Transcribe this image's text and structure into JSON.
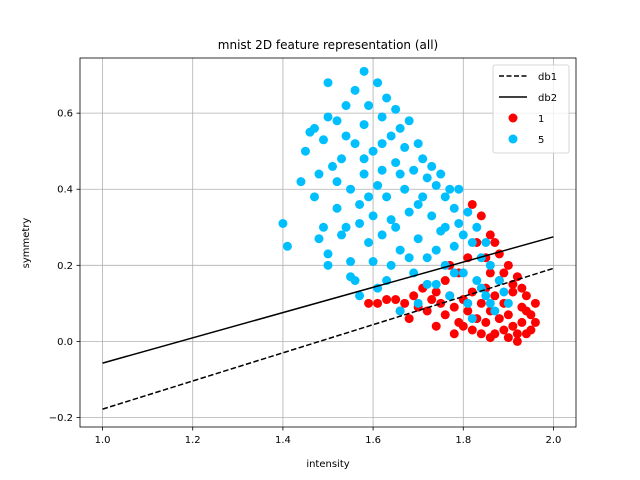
{
  "chart_data": {
    "type": "scatter",
    "title": "mnist 2D feature representation (all)",
    "xlabel": "intensity",
    "ylabel": "symmetry",
    "xlim": [
      0.95,
      2.05
    ],
    "ylim": [
      -0.225,
      0.745
    ],
    "xticks": [
      1.0,
      1.2,
      1.4,
      1.6,
      1.8,
      2.0
    ],
    "xtick_labels": [
      "1.0",
      "1.2",
      "1.4",
      "1.6",
      "1.8",
      "2.0"
    ],
    "yticks": [
      -0.2,
      0.0,
      0.2,
      0.4,
      0.6
    ],
    "ytick_labels": [
      "−0.2",
      "0.0",
      "0.2",
      "0.4",
      "0.6"
    ],
    "grid": true,
    "legend_position": "top-right",
    "lines": [
      {
        "name": "db1",
        "style": "dashed",
        "color": "#000000",
        "x": [
          1.0,
          2.0
        ],
        "y": [
          -0.178,
          0.192
        ]
      },
      {
        "name": "db2",
        "style": "solid",
        "color": "#000000",
        "x": [
          1.0,
          2.0
        ],
        "y": [
          -0.057,
          0.275
        ]
      }
    ],
    "series": [
      {
        "name": "1",
        "color": "#ff0000",
        "points": [
          [
            1.59,
            0.1
          ],
          [
            1.61,
            0.1
          ],
          [
            1.63,
            0.11
          ],
          [
            1.65,
            0.11
          ],
          [
            1.67,
            0.1
          ],
          [
            1.69,
            0.12
          ],
          [
            1.7,
            0.09
          ],
          [
            1.72,
            0.08
          ],
          [
            1.73,
            0.11
          ],
          [
            1.75,
            0.1
          ],
          [
            1.74,
            0.13
          ],
          [
            1.76,
            0.07
          ],
          [
            1.77,
            0.12
          ],
          [
            1.78,
            0.09
          ],
          [
            1.79,
            0.05
          ],
          [
            1.8,
            0.11
          ],
          [
            1.8,
            0.04
          ],
          [
            1.81,
            0.08
          ],
          [
            1.82,
            0.13
          ],
          [
            1.82,
            0.03
          ],
          [
            1.83,
            0.06
          ],
          [
            1.84,
            0.1
          ],
          [
            1.84,
            0.02
          ],
          [
            1.85,
            0.14
          ],
          [
            1.85,
            0.05
          ],
          [
            1.86,
            0.08
          ],
          [
            1.86,
            0.18
          ],
          [
            1.87,
            0.02
          ],
          [
            1.87,
            0.12
          ],
          [
            1.88,
            0.06
          ],
          [
            1.88,
            0.16
          ],
          [
            1.89,
            0.03
          ],
          [
            1.89,
            0.1
          ],
          [
            1.9,
            0.2
          ],
          [
            1.9,
            0.01
          ],
          [
            1.9,
            0.07
          ],
          [
            1.91,
            0.13
          ],
          [
            1.91,
            0.04
          ],
          [
            1.92,
            0.17
          ],
          [
            1.92,
            0.02
          ],
          [
            1.93,
            0.09
          ],
          [
            1.93,
            0.05
          ],
          [
            1.94,
            0.12
          ],
          [
            1.94,
            0.02
          ],
          [
            1.95,
            0.07
          ],
          [
            1.95,
            0.03
          ],
          [
            1.96,
            0.05
          ],
          [
            1.88,
            0.23
          ],
          [
            1.86,
            0.28
          ],
          [
            1.84,
            0.33
          ],
          [
            1.82,
            0.36
          ],
          [
            1.87,
            0.26
          ],
          [
            1.91,
            0.15
          ],
          [
            1.81,
            0.22
          ],
          [
            1.79,
            0.18
          ],
          [
            1.77,
            0.2
          ],
          [
            1.83,
            0.26
          ],
          [
            1.89,
            0.18
          ],
          [
            1.85,
            0.22
          ],
          [
            1.93,
            0.14
          ],
          [
            1.76,
            0.16
          ],
          [
            1.71,
            0.14
          ],
          [
            1.68,
            0.06
          ],
          [
            1.66,
            0.08
          ],
          [
            1.74,
            0.04
          ],
          [
            1.78,
            0.02
          ],
          [
            1.86,
            0.01
          ],
          [
            1.92,
            0.0
          ],
          [
            1.96,
            0.1
          ],
          [
            1.94,
            0.08
          ]
        ]
      },
      {
        "name": "5",
        "color": "#00bfff",
        "points": [
          [
            1.4,
            0.31
          ],
          [
            1.41,
            0.25
          ],
          [
            1.44,
            0.42
          ],
          [
            1.45,
            0.5
          ],
          [
            1.46,
            0.55
          ],
          [
            1.47,
            0.56
          ],
          [
            1.47,
            0.38
          ],
          [
            1.48,
            0.27
          ],
          [
            1.48,
            0.44
          ],
          [
            1.49,
            0.53
          ],
          [
            1.49,
            0.3
          ],
          [
            1.5,
            0.68
          ],
          [
            1.5,
            0.59
          ],
          [
            1.5,
            0.23
          ],
          [
            1.5,
            0.2
          ],
          [
            1.51,
            0.46
          ],
          [
            1.52,
            0.35
          ],
          [
            1.52,
            0.58
          ],
          [
            1.53,
            0.48
          ],
          [
            1.53,
            0.28
          ],
          [
            1.54,
            0.54
          ],
          [
            1.54,
            0.62
          ],
          [
            1.55,
            0.4
          ],
          [
            1.55,
            0.21
          ],
          [
            1.55,
            0.17
          ],
          [
            1.56,
            0.66
          ],
          [
            1.56,
            0.52
          ],
          [
            1.56,
            0.16
          ],
          [
            1.57,
            0.31
          ],
          [
            1.57,
            0.12
          ],
          [
            1.58,
            0.71
          ],
          [
            1.58,
            0.57
          ],
          [
            1.58,
            0.44
          ],
          [
            1.59,
            0.38
          ],
          [
            1.59,
            0.62
          ],
          [
            1.59,
            0.26
          ],
          [
            1.6,
            0.5
          ],
          [
            1.6,
            0.33
          ],
          [
            1.61,
            0.68
          ],
          [
            1.61,
            0.14
          ],
          [
            1.62,
            0.59
          ],
          [
            1.62,
            0.45
          ],
          [
            1.62,
            0.28
          ],
          [
            1.63,
            0.64
          ],
          [
            1.63,
            0.38
          ],
          [
            1.64,
            0.54
          ],
          [
            1.64,
            0.2
          ],
          [
            1.65,
            0.61
          ],
          [
            1.65,
            0.47
          ],
          [
            1.65,
            0.3
          ],
          [
            1.66,
            0.56
          ],
          [
            1.66,
            0.24
          ],
          [
            1.67,
            0.51
          ],
          [
            1.67,
            0.4
          ],
          [
            1.68,
            0.58
          ],
          [
            1.68,
            0.34
          ],
          [
            1.69,
            0.45
          ],
          [
            1.69,
            0.18
          ],
          [
            1.7,
            0.52
          ],
          [
            1.7,
            0.27
          ],
          [
            1.71,
            0.48
          ],
          [
            1.71,
            0.38
          ],
          [
            1.72,
            0.43
          ],
          [
            1.72,
            0.22
          ],
          [
            1.73,
            0.46
          ],
          [
            1.73,
            0.33
          ],
          [
            1.74,
            0.41
          ],
          [
            1.74,
            0.15
          ],
          [
            1.75,
            0.44
          ],
          [
            1.75,
            0.29
          ],
          [
            1.76,
            0.38
          ],
          [
            1.76,
            0.2
          ],
          [
            1.77,
            0.4
          ],
          [
            1.77,
            0.12
          ],
          [
            1.78,
            0.35
          ],
          [
            1.78,
            0.25
          ],
          [
            1.79,
            0.31
          ],
          [
            1.79,
            0.4
          ],
          [
            1.8,
            0.28
          ],
          [
            1.8,
            0.18
          ],
          [
            1.81,
            0.34
          ],
          [
            1.81,
            0.1
          ],
          [
            1.82,
            0.26
          ],
          [
            1.83,
            0.3
          ],
          [
            1.83,
            0.16
          ],
          [
            1.84,
            0.22
          ],
          [
            1.85,
            0.26
          ],
          [
            1.85,
            0.12
          ],
          [
            1.86,
            0.2
          ],
          [
            1.87,
            0.08
          ],
          [
            1.88,
            0.16
          ],
          [
            1.89,
            0.13
          ],
          [
            1.9,
            0.1
          ],
          [
            1.66,
            0.08
          ],
          [
            1.7,
            0.1
          ],
          [
            1.63,
            0.16
          ],
          [
            1.6,
            0.21
          ],
          [
            1.57,
            0.36
          ],
          [
            1.54,
            0.3
          ],
          [
            1.52,
            0.42
          ],
          [
            1.61,
            0.41
          ],
          [
            1.64,
            0.32
          ],
          [
            1.68,
            0.22
          ],
          [
            1.72,
            0.15
          ],
          [
            1.76,
            0.3
          ],
          [
            1.82,
            0.06
          ],
          [
            1.86,
            0.1
          ],
          [
            1.58,
            0.48
          ],
          [
            1.62,
            0.52
          ],
          [
            1.66,
            0.44
          ],
          [
            1.7,
            0.36
          ],
          [
            1.74,
            0.24
          ],
          [
            1.78,
            0.18
          ],
          [
            1.84,
            0.14
          ]
        ]
      }
    ]
  }
}
